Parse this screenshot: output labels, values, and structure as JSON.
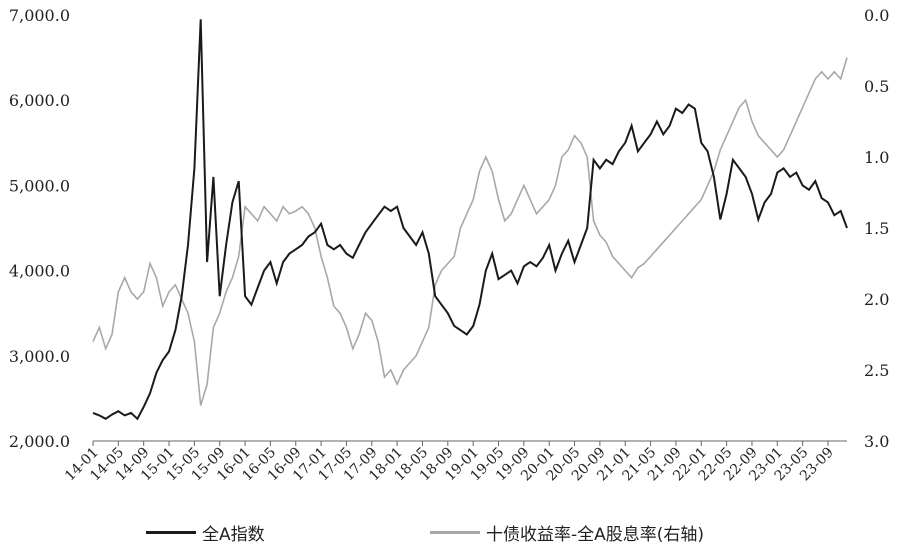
{
  "chart_data": {
    "type": "line",
    "series": [
      {
        "name": "全A指数",
        "axis": "left",
        "color": "#1a1a1a",
        "points": [
          [
            "2014-01",
            2330
          ],
          [
            "2014-02",
            2300
          ],
          [
            "2014-03",
            2260
          ],
          [
            "2014-04",
            2310
          ],
          [
            "2014-05",
            2350
          ],
          [
            "2014-06",
            2300
          ],
          [
            "2014-07",
            2330
          ],
          [
            "2014-08",
            2260
          ],
          [
            "2014-09",
            2400
          ],
          [
            "2014-10",
            2560
          ],
          [
            "2014-11",
            2800
          ],
          [
            "2014-12",
            2950
          ],
          [
            "2015-01",
            3050
          ],
          [
            "2015-02",
            3300
          ],
          [
            "2015-03",
            3700
          ],
          [
            "2015-04",
            4300
          ],
          [
            "2015-05",
            5200
          ],
          [
            "2015-06",
            6950
          ],
          [
            "2015-07",
            4100
          ],
          [
            "2015-08",
            5100
          ],
          [
            "2015-09",
            3700
          ],
          [
            "2015-10",
            4300
          ],
          [
            "2015-11",
            4800
          ],
          [
            "2015-12",
            5050
          ],
          [
            "2016-01",
            3700
          ],
          [
            "2016-02",
            3600
          ],
          [
            "2016-03",
            3800
          ],
          [
            "2016-04",
            4000
          ],
          [
            "2016-05",
            4100
          ],
          [
            "2016-06",
            3850
          ],
          [
            "2016-07",
            4100
          ],
          [
            "2016-08",
            4200
          ],
          [
            "2016-09",
            4250
          ],
          [
            "2016-10",
            4300
          ],
          [
            "2016-11",
            4400
          ],
          [
            "2016-12",
            4450
          ],
          [
            "2017-01",
            4550
          ],
          [
            "2017-02",
            4300
          ],
          [
            "2017-03",
            4250
          ],
          [
            "2017-04",
            4300
          ],
          [
            "2017-05",
            4200
          ],
          [
            "2017-06",
            4150
          ],
          [
            "2017-07",
            4300
          ],
          [
            "2017-08",
            4450
          ],
          [
            "2017-09",
            4550
          ],
          [
            "2017-10",
            4650
          ],
          [
            "2017-11",
            4750
          ],
          [
            "2017-12",
            4700
          ],
          [
            "2018-01",
            4750
          ],
          [
            "2018-02",
            4500
          ],
          [
            "2018-03",
            4400
          ],
          [
            "2018-04",
            4300
          ],
          [
            "2018-05",
            4450
          ],
          [
            "2018-06",
            4200
          ],
          [
            "2018-07",
            3700
          ],
          [
            "2018-08",
            3600
          ],
          [
            "2018-09",
            3500
          ],
          [
            "2018-10",
            3350
          ],
          [
            "2018-11",
            3300
          ],
          [
            "2018-12",
            3250
          ],
          [
            "2019-01",
            3350
          ],
          [
            "2019-02",
            3600
          ],
          [
            "2019-03",
            4000
          ],
          [
            "2019-04",
            4200
          ],
          [
            "2019-05",
            3900
          ],
          [
            "2019-06",
            3950
          ],
          [
            "2019-07",
            4000
          ],
          [
            "2019-08",
            3850
          ],
          [
            "2019-09",
            4050
          ],
          [
            "2019-10",
            4100
          ],
          [
            "2019-11",
            4050
          ],
          [
            "2019-12",
            4150
          ],
          [
            "2020-01",
            4300
          ],
          [
            "2020-02",
            4000
          ],
          [
            "2020-03",
            4200
          ],
          [
            "2020-04",
            4350
          ],
          [
            "2020-05",
            4100
          ],
          [
            "2020-06",
            4300
          ],
          [
            "2020-07",
            4500
          ],
          [
            "2020-08",
            5300
          ],
          [
            "2020-09",
            5200
          ],
          [
            "2020-10",
            5300
          ],
          [
            "2020-11",
            5250
          ],
          [
            "2020-12",
            5400
          ],
          [
            "2021-01",
            5500
          ],
          [
            "2021-02",
            5700
          ],
          [
            "2021-03",
            5400
          ],
          [
            "2021-04",
            5500
          ],
          [
            "2021-05",
            5600
          ],
          [
            "2021-06",
            5750
          ],
          [
            "2021-07",
            5600
          ],
          [
            "2021-08",
            5700
          ],
          [
            "2021-09",
            5900
          ],
          [
            "2021-10",
            5850
          ],
          [
            "2021-11",
            5950
          ],
          [
            "2021-12",
            5900
          ],
          [
            "2022-01",
            5500
          ],
          [
            "2022-02",
            5400
          ],
          [
            "2022-03",
            5100
          ],
          [
            "2022-04",
            4600
          ],
          [
            "2022-05",
            4900
          ],
          [
            "2022-06",
            5300
          ],
          [
            "2022-07",
            5200
          ],
          [
            "2022-08",
            5100
          ],
          [
            "2022-09",
            4900
          ],
          [
            "2022-10",
            4600
          ],
          [
            "2022-11",
            4800
          ],
          [
            "2022-12",
            4900
          ],
          [
            "2023-01",
            5150
          ],
          [
            "2023-02",
            5200
          ],
          [
            "2023-03",
            5100
          ],
          [
            "2023-04",
            5150
          ],
          [
            "2023-05",
            5000
          ],
          [
            "2023-06",
            4950
          ],
          [
            "2023-07",
            5050
          ],
          [
            "2023-08",
            4850
          ],
          [
            "2023-09",
            4800
          ],
          [
            "2023-10",
            4650
          ],
          [
            "2023-11",
            4700
          ],
          [
            "2023-12",
            4500
          ]
        ]
      },
      {
        "name": "十债收益率-全A股息率(右轴)",
        "axis": "right",
        "color": "#a8a8a8",
        "points": [
          [
            "2014-01",
            2.3
          ],
          [
            "2014-02",
            2.2
          ],
          [
            "2014-03",
            2.35
          ],
          [
            "2014-04",
            2.25
          ],
          [
            "2014-05",
            1.95
          ],
          [
            "2014-06",
            1.85
          ],
          [
            "2014-07",
            1.95
          ],
          [
            "2014-08",
            2.0
          ],
          [
            "2014-09",
            1.95
          ],
          [
            "2014-10",
            1.75
          ],
          [
            "2014-11",
            1.85
          ],
          [
            "2014-12",
            2.05
          ],
          [
            "2015-01",
            1.95
          ],
          [
            "2015-02",
            1.9
          ],
          [
            "2015-03",
            2.0
          ],
          [
            "2015-04",
            2.1
          ],
          [
            "2015-05",
            2.3
          ],
          [
            "2015-06",
            2.75
          ],
          [
            "2015-07",
            2.6
          ],
          [
            "2015-08",
            2.2
          ],
          [
            "2015-09",
            2.1
          ],
          [
            "2015-10",
            1.95
          ],
          [
            "2015-11",
            1.85
          ],
          [
            "2015-12",
            1.7
          ],
          [
            "2016-01",
            1.35
          ],
          [
            "2016-02",
            1.4
          ],
          [
            "2016-03",
            1.45
          ],
          [
            "2016-04",
            1.35
          ],
          [
            "2016-05",
            1.4
          ],
          [
            "2016-06",
            1.45
          ],
          [
            "2016-07",
            1.35
          ],
          [
            "2016-08",
            1.4
          ],
          [
            "2016-09",
            1.38
          ],
          [
            "2016-10",
            1.35
          ],
          [
            "2016-11",
            1.4
          ],
          [
            "2016-12",
            1.5
          ],
          [
            "2017-01",
            1.7
          ],
          [
            "2017-02",
            1.85
          ],
          [
            "2017-03",
            2.05
          ],
          [
            "2017-04",
            2.1
          ],
          [
            "2017-05",
            2.2
          ],
          [
            "2017-06",
            2.35
          ],
          [
            "2017-07",
            2.25
          ],
          [
            "2017-08",
            2.1
          ],
          [
            "2017-09",
            2.15
          ],
          [
            "2017-10",
            2.3
          ],
          [
            "2017-11",
            2.55
          ],
          [
            "2017-12",
            2.5
          ],
          [
            "2018-01",
            2.6
          ],
          [
            "2018-02",
            2.5
          ],
          [
            "2018-03",
            2.45
          ],
          [
            "2018-04",
            2.4
          ],
          [
            "2018-05",
            2.3
          ],
          [
            "2018-06",
            2.2
          ],
          [
            "2018-07",
            1.9
          ],
          [
            "2018-08",
            1.8
          ],
          [
            "2018-09",
            1.75
          ],
          [
            "2018-10",
            1.7
          ],
          [
            "2018-11",
            1.5
          ],
          [
            "2018-12",
            1.4
          ],
          [
            "2019-01",
            1.3
          ],
          [
            "2019-02",
            1.1
          ],
          [
            "2019-03",
            1.0
          ],
          [
            "2019-04",
            1.1
          ],
          [
            "2019-05",
            1.3
          ],
          [
            "2019-06",
            1.45
          ],
          [
            "2019-07",
            1.4
          ],
          [
            "2019-08",
            1.3
          ],
          [
            "2019-09",
            1.2
          ],
          [
            "2019-10",
            1.3
          ],
          [
            "2019-11",
            1.4
          ],
          [
            "2019-12",
            1.35
          ],
          [
            "2020-01",
            1.3
          ],
          [
            "2020-02",
            1.2
          ],
          [
            "2020-03",
            1.0
          ],
          [
            "2020-04",
            0.95
          ],
          [
            "2020-05",
            0.85
          ],
          [
            "2020-06",
            0.9
          ],
          [
            "2020-07",
            1.0
          ],
          [
            "2020-08",
            1.45
          ],
          [
            "2020-09",
            1.55
          ],
          [
            "2020-10",
            1.6
          ],
          [
            "2020-11",
            1.7
          ],
          [
            "2020-12",
            1.75
          ],
          [
            "2021-01",
            1.8
          ],
          [
            "2021-02",
            1.85
          ],
          [
            "2021-03",
            1.78
          ],
          [
            "2021-04",
            1.75
          ],
          [
            "2021-05",
            1.7
          ],
          [
            "2021-06",
            1.65
          ],
          [
            "2021-07",
            1.6
          ],
          [
            "2021-08",
            1.55
          ],
          [
            "2021-09",
            1.5
          ],
          [
            "2021-10",
            1.45
          ],
          [
            "2021-11",
            1.4
          ],
          [
            "2021-12",
            1.35
          ],
          [
            "2022-01",
            1.3
          ],
          [
            "2022-02",
            1.2
          ],
          [
            "2022-03",
            1.1
          ],
          [
            "2022-04",
            0.95
          ],
          [
            "2022-05",
            0.85
          ],
          [
            "2022-06",
            0.75
          ],
          [
            "2022-07",
            0.65
          ],
          [
            "2022-08",
            0.6
          ],
          [
            "2022-09",
            0.75
          ],
          [
            "2022-10",
            0.85
          ],
          [
            "2022-11",
            0.9
          ],
          [
            "2022-12",
            0.95
          ],
          [
            "2023-01",
            1.0
          ],
          [
            "2023-02",
            0.95
          ],
          [
            "2023-03",
            0.85
          ],
          [
            "2023-04",
            0.75
          ],
          [
            "2023-05",
            0.65
          ],
          [
            "2023-06",
            0.55
          ],
          [
            "2023-07",
            0.45
          ],
          [
            "2023-08",
            0.4
          ],
          [
            "2023-09",
            0.45
          ],
          [
            "2023-10",
            0.4
          ],
          [
            "2023-11",
            0.45
          ],
          [
            "2023-12",
            0.3
          ]
        ]
      }
    ],
    "x_ticks": [
      "14-01",
      "14-05",
      "14-09",
      "15-01",
      "15-05",
      "15-09",
      "16-01",
      "16-05",
      "16-09",
      "17-01",
      "17-05",
      "17-09",
      "18-01",
      "18-05",
      "18-09",
      "19-01",
      "19-05",
      "19-09",
      "20-01",
      "20-05",
      "20-09",
      "21-01",
      "21-05",
      "21-09",
      "22-01",
      "22-05",
      "22-09",
      "23-01",
      "23-05",
      "23-09"
    ],
    "left_axis": {
      "ylim": [
        2000,
        7000
      ],
      "ticks": [
        "2,000.0",
        "3,000.0",
        "4,000.0",
        "5,000.0",
        "6,000.0",
        "7,000.0"
      ]
    },
    "right_axis": {
      "ylim": [
        3.0,
        0.0
      ],
      "reversed": true,
      "ticks": [
        "0.0",
        "0.5",
        "1.0",
        "1.5",
        "2.0",
        "2.5",
        "3.0"
      ]
    },
    "grid": false,
    "legend_position": "bottom"
  },
  "legend": {
    "items": [
      {
        "label": "全A指数",
        "color": "#1a1a1a"
      },
      {
        "label": "十债收益率-全A股息率(右轴)",
        "color": "#a8a8a8"
      }
    ]
  }
}
